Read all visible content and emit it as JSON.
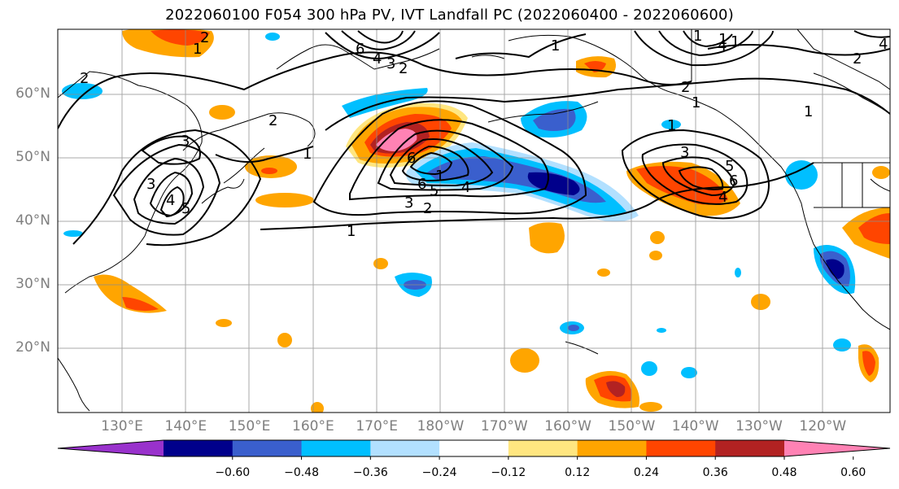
{
  "title": "2022060100 F054 300 hPa PV, IVT Landfall PC (2022060400 - 2022060600)",
  "lat_labels": [
    {
      "text": "60°N",
      "lat": 60
    },
    {
      "text": "50°N",
      "lat": 50
    },
    {
      "text": "40°N",
      "lat": 40
    },
    {
      "text": "30°N",
      "lat": 30
    },
    {
      "text": "20°N",
      "lat": 20
    }
  ],
  "lon_labels": [
    {
      "text": "130°E",
      "lon": 130
    },
    {
      "text": "140°E",
      "lon": 140
    },
    {
      "text": "150°E",
      "lon": 150
    },
    {
      "text": "160°E",
      "lon": 160
    },
    {
      "text": "170°E",
      "lon": 170
    },
    {
      "text": "180°W",
      "lon": 180
    },
    {
      "text": "170°W",
      "lon": 190
    },
    {
      "text": "160°W",
      "lon": 200
    },
    {
      "text": "150°W",
      "lon": 210
    },
    {
      "text": "140°W",
      "lon": 220
    },
    {
      "text": "130°W",
      "lon": 230
    },
    {
      "text": "120°W",
      "lon": 240
    }
  ],
  "colorbar": {
    "colors": [
      "#9932cc",
      "#00008b",
      "#3a5fcd",
      "#00bfff",
      "#b2e0ff",
      "#ffffff",
      "#ffe680",
      "#ffa500",
      "#ff4500",
      "#b22222",
      "#ff82b4"
    ],
    "tick_labels": [
      "−0.60",
      "−0.48",
      "−0.36",
      "−0.24",
      "−0.12",
      "0.12",
      "0.24",
      "0.36",
      "0.48",
      "0.60"
    ]
  },
  "contour_labels": [
    "2",
    "1",
    "6",
    "4",
    "3",
    "2",
    "1",
    "1",
    "1",
    "4",
    "2",
    "2",
    "2",
    "1",
    "1",
    "2",
    "1",
    "3",
    "3",
    "4",
    "5",
    "6",
    "1",
    "6",
    "5",
    "4",
    "3",
    "2",
    "1",
    "1",
    "3",
    "5",
    "6",
    "4",
    "4",
    "1"
  ]
}
